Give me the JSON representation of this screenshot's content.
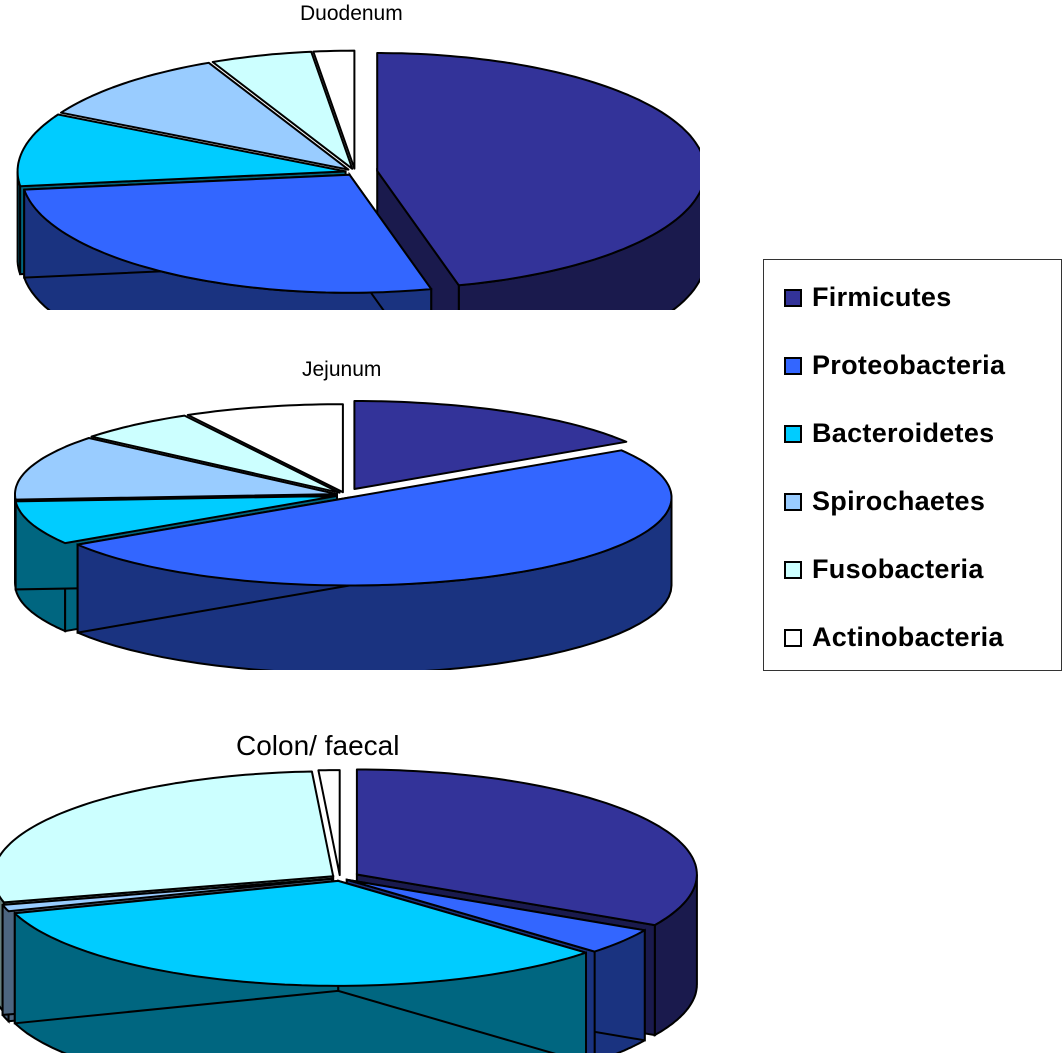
{
  "legend": {
    "items": [
      {
        "label": "Firmicutes",
        "color": "#333399",
        "side": "#1a1a4d"
      },
      {
        "label": "Proteobacteria",
        "color": "#3366ff",
        "side": "#1a3380"
      },
      {
        "label": "Bacteroidetes",
        "color": "#00ccff",
        "side": "#006680"
      },
      {
        "label": "Spirochaetes",
        "color": "#99ccff",
        "side": "#4d6680"
      },
      {
        "label": "Fusobacteria",
        "color": "#ccffff",
        "side": "#668080"
      },
      {
        "label": "Actinobacteria",
        "color": "#ffffff",
        "side": "#808080"
      }
    ]
  },
  "chart_data": [
    {
      "type": "pie",
      "title": "Duodenum",
      "categories": [
        "Firmicutes",
        "Proteobacteria",
        "Bacteroidetes",
        "Spirochaetes",
        "Fusobacteria",
        "Actinobacteria"
      ],
      "values": [
        46,
        27,
        10,
        10,
        5,
        2
      ],
      "unit": "%",
      "style": "3d-exploded",
      "legend_position": "right"
    },
    {
      "type": "pie",
      "title": "Jejunum",
      "categories": [
        "Firmicutes",
        "Proteobacteria",
        "Bacteroidetes",
        "Spirochaetes",
        "Fusobacteria",
        "Actinobacteria"
      ],
      "values": [
        16,
        50,
        8,
        12,
        6,
        8
      ],
      "unit": "%",
      "style": "3d-exploded",
      "legend_position": "right"
    },
    {
      "type": "pie",
      "title": "Colon/ faecal",
      "categories": [
        "Firmicutes",
        "Proteobacteria",
        "Bacteroidetes",
        "Spirochaetes",
        "Fusobacteria",
        "Actinobacteria"
      ],
      "values": [
        33,
        4,
        33,
        1,
        28,
        1
      ],
      "unit": "%",
      "style": "3d-exploded",
      "legend_position": "right"
    }
  ]
}
